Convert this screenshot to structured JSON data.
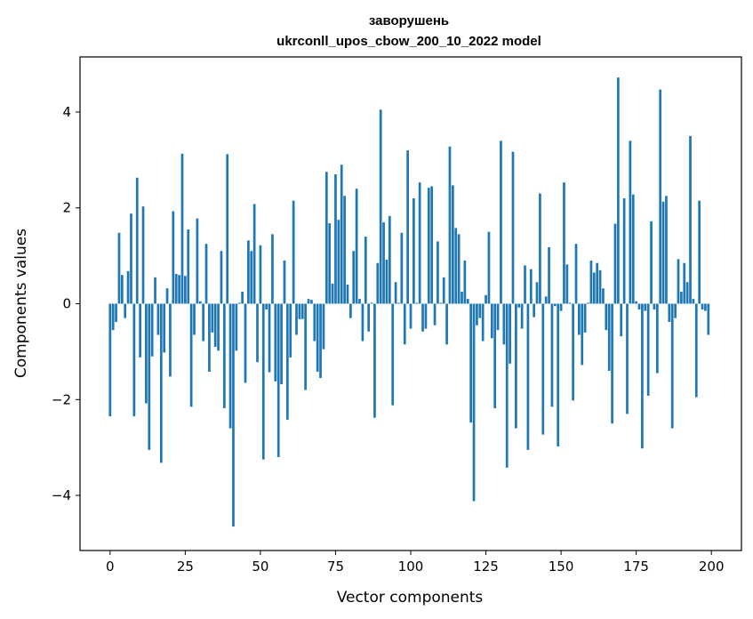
{
  "chart_data": {
    "type": "bar",
    "title": "заворушень",
    "subtitle": "ukrconll_upos_cbow_200_10_2022 model",
    "xlabel": "Vector components",
    "ylabel": "Components values",
    "xlim": [
      -10,
      210
    ],
    "ylim": [
      -5.15,
      5.15
    ],
    "xticks": [
      0,
      25,
      50,
      75,
      100,
      125,
      150,
      175,
      200
    ],
    "yticks": [
      -4,
      -2,
      0,
      2,
      4
    ],
    "xtick_labels": [
      "0",
      "25",
      "50",
      "75",
      "100",
      "125",
      "150",
      "175",
      "200"
    ],
    "ytick_labels": [
      "−4",
      "−2",
      "0",
      "2",
      "4"
    ],
    "bar_color": "#1f77b4",
    "values": [
      -2.35,
      -0.55,
      -0.38,
      1.48,
      0.6,
      -0.3,
      0.68,
      1.88,
      -2.35,
      2.63,
      -1.12,
      2.03,
      -2.08,
      -3.05,
      -1.1,
      0.55,
      -0.65,
      -3.32,
      -1.02,
      0.32,
      -1.52,
      1.93,
      0.62,
      0.6,
      3.13,
      0.58,
      1.55,
      -2.15,
      -0.65,
      1.78,
      0.05,
      -0.78,
      1.25,
      -1.42,
      -0.6,
      -0.9,
      -0.98,
      1.1,
      -2.18,
      3.12,
      -2.6,
      -4.65,
      -0.98,
      0.02,
      0.25,
      -1.65,
      1.32,
      1.1,
      2.08,
      -1.22,
      1.22,
      -3.25,
      -0.12,
      -1.43,
      1.45,
      -1.62,
      -3.2,
      -1.68,
      0.9,
      -2.42,
      -1.12,
      2.15,
      -0.65,
      -0.32,
      -0.32,
      -1.8,
      0.1,
      0.08,
      -0.78,
      -1.42,
      -1.55,
      -0.95,
      2.75,
      1.68,
      0.42,
      2.7,
      1.75,
      2.9,
      2.25,
      0.4,
      -0.3,
      1.1,
      2.4,
      0.1,
      -0.78,
      1.4,
      -0.58,
      0.02,
      -2.38,
      0.85,
      4.05,
      1.7,
      0.92,
      1.83,
      -2.12,
      0.45,
      0.02,
      1.48,
      -0.85,
      3.2,
      -0.52,
      2.2,
      0.02,
      2.53,
      -0.58,
      -0.52,
      2.42,
      2.45,
      -0.45,
      1.3,
      0.02,
      0.55,
      -0.85,
      3.28,
      2.47,
      1.58,
      1.45,
      0.25,
      0.9,
      0.1,
      -2.48,
      -4.12,
      -0.45,
      -0.3,
      -0.78,
      0.18,
      1.5,
      -0.72,
      -2.18,
      -0.55,
      3.4,
      -0.85,
      -3.42,
      -1.25,
      3.17,
      -2.6,
      -0.08,
      -0.52,
      0.8,
      -3.05,
      0.72,
      -0.28,
      0.45,
      2.3,
      -2.73,
      0.15,
      1.18,
      -2.15,
      -0.05,
      -2.98,
      -0.15,
      2.53,
      0.82,
      0.02,
      -2.02,
      1.25,
      -0.65,
      -1.28,
      -0.6,
      0.02,
      0.9,
      0.65,
      0.85,
      0.7,
      0.32,
      -0.55,
      -1.4,
      -2.5,
      1.67,
      4.72,
      -0.68,
      2.2,
      -2.3,
      3.4,
      2.28,
      0.05,
      -0.12,
      -3.02,
      -0.15,
      -1.92,
      1.72,
      -0.12,
      -1.45,
      4.47,
      2.13,
      2.25,
      -0.38,
      -2.6,
      -0.3,
      0.93,
      0.25,
      0.85,
      0.45,
      3.5,
      0.1,
      -1.95,
      2.15,
      -0.12,
      -0.15,
      -0.65
    ]
  }
}
